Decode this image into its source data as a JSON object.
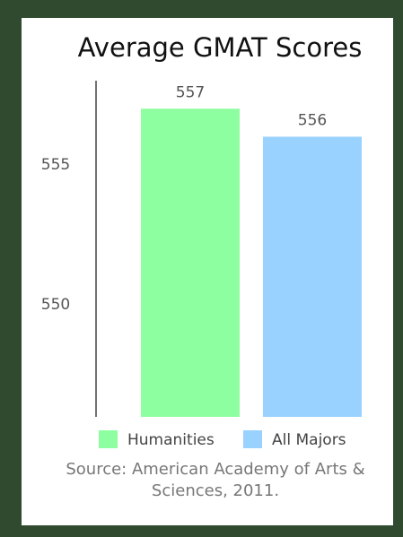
{
  "chart_data": {
    "type": "bar",
    "title": "Average GMAT Scores",
    "categories": [
      "Humanities",
      "All Majors"
    ],
    "values": [
      557,
      556
    ],
    "colors": [
      "#8effa0",
      "#99d1ff"
    ],
    "ylim": [
      546,
      558
    ],
    "yticks": [
      550,
      555
    ],
    "grid": false,
    "legend": "bottom",
    "source": "Source: American Academy of Arts & Sciences, 2011."
  }
}
